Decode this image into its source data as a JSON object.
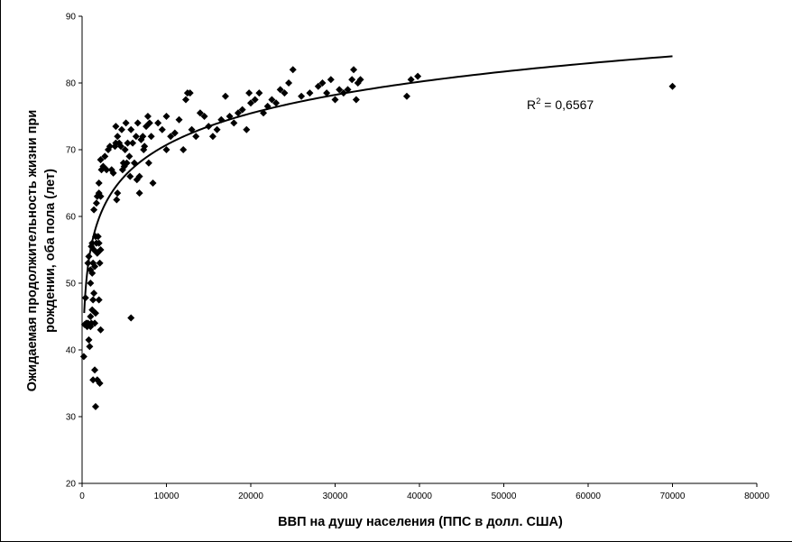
{
  "chart_data": {
    "type": "scatter",
    "title": "",
    "xlabel": "ВВП на душу населения (ППС в долл. США)",
    "ylabel_lines": [
      "Ожидаемая продолжительность жизни при",
      "рождении, оба пола (лет)"
    ],
    "xlim": [
      0,
      80000
    ],
    "ylim": [
      20,
      90
    ],
    "xticks": [
      0,
      10000,
      20000,
      30000,
      40000,
      50000,
      60000,
      70000,
      80000
    ],
    "yticks": [
      20,
      30,
      40,
      50,
      60,
      70,
      80,
      90
    ],
    "grid": false,
    "legend": "none",
    "marker": "diamond",
    "marker_color": "#000000",
    "annotation": {
      "base": "R",
      "superscript": "2",
      "rest": " = 0,6567"
    },
    "trendline": {
      "type": "logarithmic",
      "x_range": [
        250,
        70000
      ],
      "points_at": [
        [
          1000,
          55
        ],
        [
          10000,
          71.5
        ],
        [
          30000,
          79
        ],
        [
          70000,
          84
        ]
      ]
    },
    "points": [
      [
        200,
        39
      ],
      [
        300,
        43.8
      ],
      [
        400,
        47.8
      ],
      [
        500,
        44
      ],
      [
        600,
        43.5
      ],
      [
        700,
        44
      ],
      [
        800,
        41.5
      ],
      [
        900,
        40.5
      ],
      [
        1000,
        43.5
      ],
      [
        1000,
        45
      ],
      [
        1100,
        44
      ],
      [
        1200,
        46
      ],
      [
        1300,
        47.5
      ],
      [
        1400,
        48.5
      ],
      [
        1500,
        44
      ],
      [
        1600,
        45.5
      ],
      [
        2000,
        47.5
      ],
      [
        2200,
        43
      ],
      [
        1500,
        37
      ],
      [
        1300,
        35.5
      ],
      [
        1600,
        31.5
      ],
      [
        1800,
        35.5
      ],
      [
        2100,
        35
      ],
      [
        700,
        53
      ],
      [
        800,
        54
      ],
      [
        1000,
        52
      ],
      [
        1100,
        55.5
      ],
      [
        1200,
        56
      ],
      [
        1300,
        53
      ],
      [
        1400,
        55
      ],
      [
        1500,
        52.5
      ],
      [
        1600,
        57
      ],
      [
        1700,
        56
      ],
      [
        1800,
        54.5
      ],
      [
        1900,
        57
      ],
      [
        2000,
        56
      ],
      [
        2100,
        53
      ],
      [
        2200,
        55
      ],
      [
        1000,
        50
      ],
      [
        1200,
        51.5
      ],
      [
        1400,
        61
      ],
      [
        1700,
        62
      ],
      [
        1800,
        63
      ],
      [
        2000,
        63.5
      ],
      [
        2200,
        63
      ],
      [
        2000,
        65
      ],
      [
        2300,
        67
      ],
      [
        2200,
        68.5
      ],
      [
        2500,
        67.5
      ],
      [
        2700,
        69
      ],
      [
        2900,
        67
      ],
      [
        3100,
        70
      ],
      [
        3300,
        70.5
      ],
      [
        3500,
        67
      ],
      [
        3700,
        66.5
      ],
      [
        3900,
        70.5
      ],
      [
        4000,
        71
      ],
      [
        4200,
        72
      ],
      [
        4000,
        73.5
      ],
      [
        4400,
        71
      ],
      [
        4600,
        70.5
      ],
      [
        4800,
        67
      ],
      [
        5000,
        67.5
      ],
      [
        5100,
        70
      ],
      [
        5400,
        71
      ],
      [
        5600,
        69
      ],
      [
        5800,
        73
      ],
      [
        6000,
        71
      ],
      [
        6200,
        68
      ],
      [
        6400,
        72
      ],
      [
        6600,
        74
      ],
      [
        6800,
        66
      ],
      [
        7000,
        71.5
      ],
      [
        7200,
        72
      ],
      [
        7400,
        70.5
      ],
      [
        7600,
        73.5
      ],
      [
        7800,
        75
      ],
      [
        8000,
        74
      ],
      [
        8200,
        72
      ],
      [
        8400,
        65
      ],
      [
        6500,
        65.5
      ],
      [
        6800,
        63.5
      ],
      [
        4200,
        63.5
      ],
      [
        4100,
        62.5
      ],
      [
        5300,
        68
      ],
      [
        5700,
        66
      ],
      [
        4700,
        73
      ],
      [
        4900,
        68
      ],
      [
        5200,
        74
      ],
      [
        7300,
        70
      ],
      [
        7900,
        68
      ],
      [
        9000,
        74
      ],
      [
        9500,
        73
      ],
      [
        10000,
        75
      ],
      [
        10000,
        70
      ],
      [
        10500,
        72
      ],
      [
        11000,
        72.5
      ],
      [
        11500,
        74.5
      ],
      [
        12000,
        70
      ],
      [
        12500,
        78.5
      ],
      [
        12300,
        77.5
      ],
      [
        12800,
        78.5
      ],
      [
        13000,
        73
      ],
      [
        13500,
        72
      ],
      [
        14000,
        75.5
      ],
      [
        14500,
        75
      ],
      [
        15000,
        73.5
      ],
      [
        15500,
        72
      ],
      [
        16000,
        73
      ],
      [
        16500,
        74.5
      ],
      [
        17000,
        78
      ],
      [
        17500,
        75
      ],
      [
        18000,
        74
      ],
      [
        18500,
        75.5
      ],
      [
        19000,
        76
      ],
      [
        19500,
        73
      ],
      [
        19800,
        78.5
      ],
      [
        20000,
        77
      ],
      [
        20500,
        77.5
      ],
      [
        21000,
        78.5
      ],
      [
        21500,
        75.5
      ],
      [
        22000,
        76.5
      ],
      [
        22500,
        77.5
      ],
      [
        23000,
        77
      ],
      [
        23500,
        79
      ],
      [
        24000,
        78.5
      ],
      [
        24500,
        80
      ],
      [
        25000,
        82
      ],
      [
        26000,
        78
      ],
      [
        27000,
        78.5
      ],
      [
        28000,
        79.5
      ],
      [
        28500,
        80
      ],
      [
        29000,
        78.5
      ],
      [
        29500,
        80.5
      ],
      [
        30000,
        77.5
      ],
      [
        30500,
        79
      ],
      [
        31000,
        78.5
      ],
      [
        31500,
        79
      ],
      [
        32000,
        80.5
      ],
      [
        32200,
        82
      ],
      [
        32700,
        80
      ],
      [
        33000,
        80.5
      ],
      [
        32500,
        77.5
      ],
      [
        38500,
        78
      ],
      [
        39000,
        80.5
      ],
      [
        39800,
        81
      ],
      [
        70000,
        79.5
      ],
      [
        5800,
        44.8
      ]
    ]
  }
}
